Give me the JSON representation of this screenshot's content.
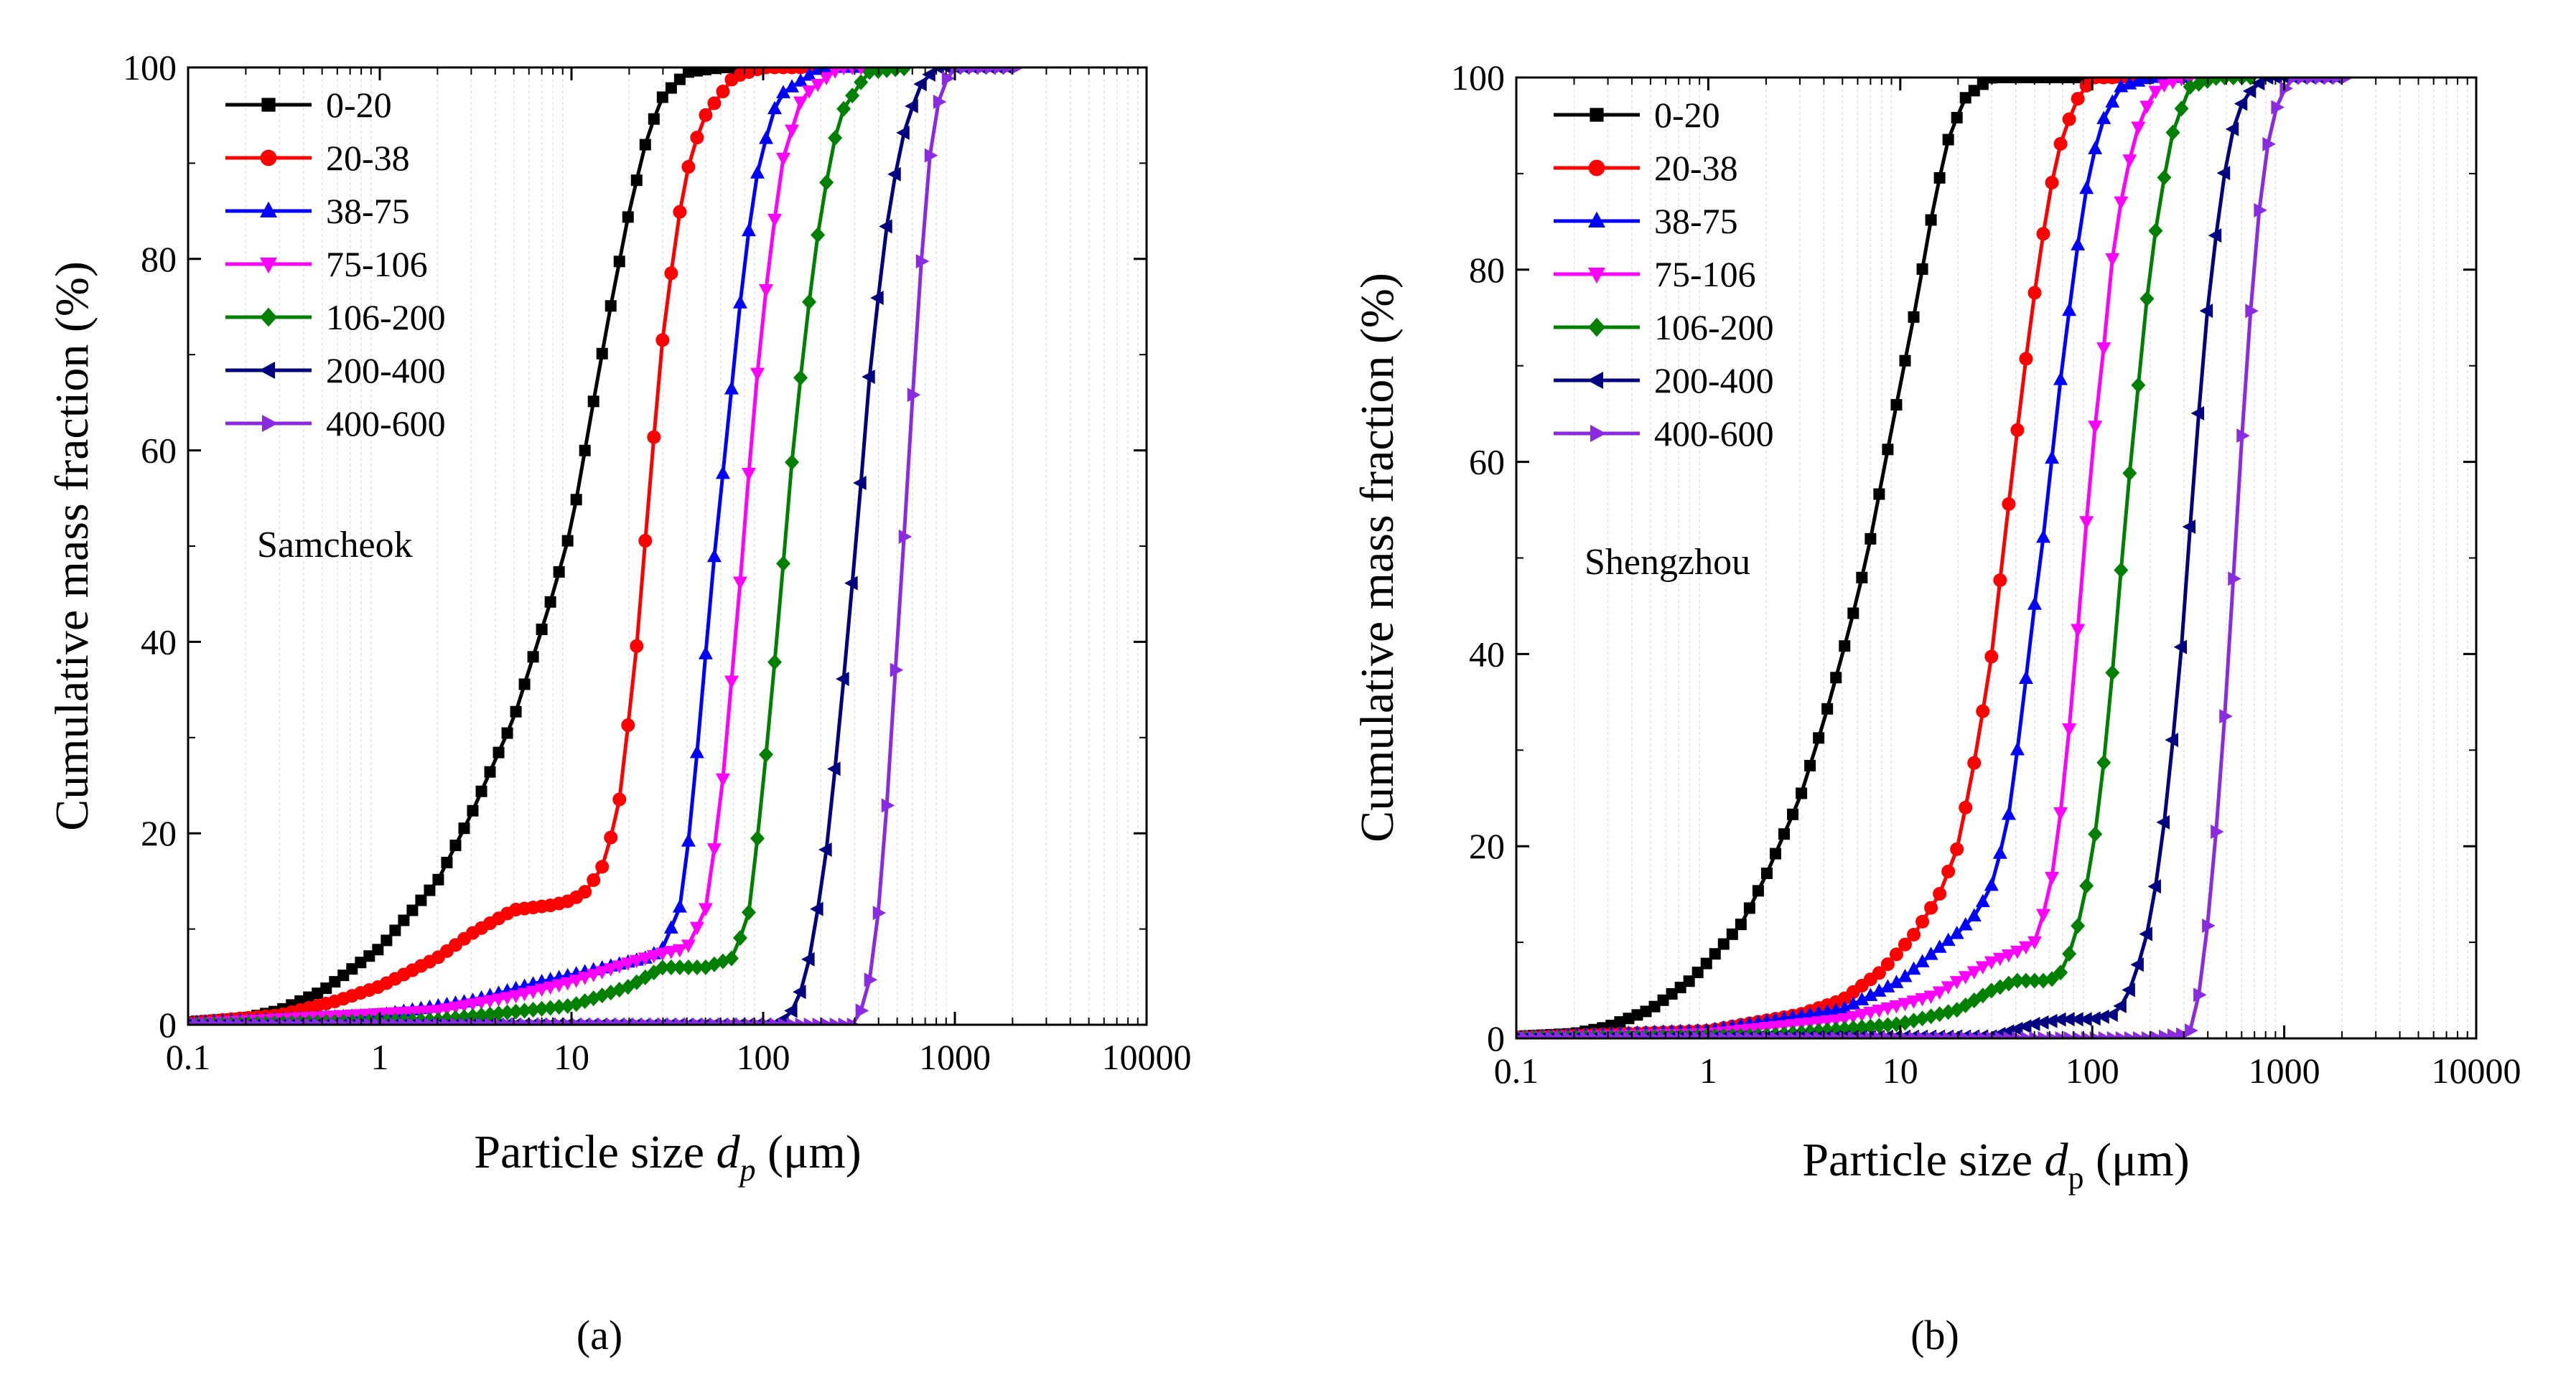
{
  "figure": {
    "panel_labels": [
      "(a)",
      "(b)"
    ]
  },
  "series_styles": [
    {
      "name": "0-20",
      "color": "#000000",
      "marker": "square"
    },
    {
      "name": "20-38",
      "color": "#ff0000",
      "marker": "circle"
    },
    {
      "name": "38-75",
      "color": "#0000ff",
      "marker": "triangle-up"
    },
    {
      "name": "75-106",
      "color": "#ff00ff",
      "marker": "triangle-down"
    },
    {
      "name": "106-200",
      "color": "#008000",
      "marker": "diamond"
    },
    {
      "name": "200-400",
      "color": "#000080",
      "marker": "triangle-left"
    },
    {
      "name": "400-600",
      "color": "#8a2be2",
      "marker": "triangle-right"
    }
  ],
  "chart_data": [
    {
      "type": "line",
      "panel": "(a)",
      "annotation": "Samcheok",
      "xscale": "log",
      "xlim": [
        0.1,
        10000
      ],
      "ylim": [
        0,
        100
      ],
      "xticks": [
        "0.1",
        "1",
        "10",
        "100",
        "1000",
        "10000"
      ],
      "yticks": [
        "0",
        "20",
        "40",
        "60",
        "80",
        "100"
      ],
      "xlabel_main": "Particle size ",
      "xlabel_var": "d",
      "xlabel_sub": "p",
      "xlabel_unit": " (μm)",
      "ylabel": "Cumulative mass fraction (%)",
      "legend_position": "top-left",
      "series": [
        {
          "name": "0-20",
          "points": [
            [
              0.1,
              0.3
            ],
            [
              0.2,
              0.7
            ],
            [
              0.3,
              1.5
            ],
            [
              0.5,
              3.5
            ],
            [
              1,
              8
            ],
            [
              2,
              15
            ],
            [
              3,
              22
            ],
            [
              5,
              32
            ],
            [
              8,
              45
            ],
            [
              10,
              52
            ],
            [
              13,
              65
            ],
            [
              16,
              75
            ],
            [
              20,
              85
            ],
            [
              25,
              93
            ],
            [
              30,
              97
            ],
            [
              40,
              99.5
            ],
            [
              60,
              100
            ],
            [
              100,
              100
            ]
          ]
        },
        {
          "name": "20-38",
          "points": [
            [
              0.1,
              0.2
            ],
            [
              0.3,
              1
            ],
            [
              0.6,
              2.5
            ],
            [
              1,
              4
            ],
            [
              2,
              7
            ],
            [
              3,
              9.5
            ],
            [
              5,
              12
            ],
            [
              8,
              12.5
            ],
            [
              10,
              13
            ],
            [
              12,
              14
            ],
            [
              15,
              17
            ],
            [
              18,
              24
            ],
            [
              22,
              40
            ],
            [
              26,
              58
            ],
            [
              30,
              72
            ],
            [
              36,
              84
            ],
            [
              42,
              91
            ],
            [
              50,
              95
            ],
            [
              70,
              99
            ],
            [
              100,
              100
            ],
            [
              200,
              100
            ]
          ]
        },
        {
          "name": "38-75",
          "points": [
            [
              0.1,
              0.2
            ],
            [
              1,
              1
            ],
            [
              3,
              2.5
            ],
            [
              7,
              4.5
            ],
            [
              15,
              6
            ],
            [
              25,
              7
            ],
            [
              30,
              8
            ],
            [
              38,
              13
            ],
            [
              45,
              28
            ],
            [
              55,
              48
            ],
            [
              65,
              62
            ],
            [
              80,
              80
            ],
            [
              95,
              90
            ],
            [
              120,
              97
            ],
            [
              200,
              100
            ],
            [
              400,
              100
            ]
          ]
        },
        {
          "name": "75-106",
          "points": [
            [
              0.1,
              0.1
            ],
            [
              2,
              1.5
            ],
            [
              5,
              3
            ],
            [
              10,
              4.5
            ],
            [
              20,
              6.5
            ],
            [
              30,
              7.5
            ],
            [
              40,
              8
            ],
            [
              50,
              12
            ],
            [
              60,
              23
            ],
            [
              75,
              45
            ],
            [
              90,
              65
            ],
            [
              105,
              78
            ],
            [
              125,
              90
            ],
            [
              160,
              97
            ],
            [
              250,
              100
            ],
            [
              500,
              100
            ]
          ]
        },
        {
          "name": "106-200",
          "points": [
            [
              0.1,
              0
            ],
            [
              2,
              0.5
            ],
            [
              10,
              2
            ],
            [
              20,
              4
            ],
            [
              30,
              6
            ],
            [
              50,
              6
            ],
            [
              70,
              7
            ],
            [
              85,
              12
            ],
            [
              100,
              25
            ],
            [
              120,
              42
            ],
            [
              140,
              58
            ],
            [
              165,
              72
            ],
            [
              200,
              85
            ],
            [
              250,
              95
            ],
            [
              350,
              99.5
            ],
            [
              600,
              100
            ]
          ]
        },
        {
          "name": "200-400",
          "points": [
            [
              0.1,
              0
            ],
            [
              50,
              0
            ],
            [
              120,
              0
            ],
            [
              150,
              2
            ],
            [
              180,
              8
            ],
            [
              220,
              20
            ],
            [
              260,
              35
            ],
            [
              310,
              52
            ],
            [
              360,
              68
            ],
            [
              430,
              82
            ],
            [
              520,
              92
            ],
            [
              650,
              98
            ],
            [
              800,
              100
            ],
            [
              1000,
              100
            ],
            [
              2000,
              100
            ]
          ]
        },
        {
          "name": "400-600",
          "points": [
            [
              0.1,
              0
            ],
            [
              200,
              0
            ],
            [
              300,
              0
            ],
            [
              350,
              3
            ],
            [
              400,
              12
            ],
            [
              450,
              25
            ],
            [
              500,
              40
            ],
            [
              560,
              55
            ],
            [
              620,
              70
            ],
            [
              680,
              82
            ],
            [
              750,
              92
            ],
            [
              850,
              98
            ],
            [
              1000,
              100
            ],
            [
              2200,
              100
            ]
          ]
        }
      ]
    },
    {
      "type": "line",
      "panel": "(b)",
      "annotation": "Shengzhou",
      "xscale": "log",
      "xlim": [
        0.1,
        10000
      ],
      "ylim": [
        0,
        100
      ],
      "xticks": [
        "0.1",
        "1",
        "10",
        "100",
        "1000",
        "10000"
      ],
      "yticks": [
        "0",
        "20",
        "40",
        "60",
        "80",
        "100"
      ],
      "xlabel_main": "Particle size ",
      "xlabel_var": "d",
      "xlabel_sub": "p",
      "xlabel_unit": " (μm)",
      "ylabel": "Cumulative mass fraction (%)",
      "legend_position": "top-left",
      "series": [
        {
          "name": "0-20",
          "points": [
            [
              0.1,
              0.2
            ],
            [
              0.2,
              0.5
            ],
            [
              0.3,
              1.2
            ],
            [
              0.5,
              3
            ],
            [
              0.8,
              6
            ],
            [
              1,
              8
            ],
            [
              1.5,
              12
            ],
            [
              2,
              17
            ],
            [
              3,
              25
            ],
            [
              4,
              33
            ],
            [
              5,
              40
            ],
            [
              6,
              46
            ],
            [
              7,
              52
            ],
            [
              8,
              58
            ],
            [
              10,
              68
            ],
            [
              12,
              76
            ],
            [
              15,
              87
            ],
            [
              18,
              94
            ],
            [
              22,
              98
            ],
            [
              30,
              100
            ],
            [
              100,
              100
            ],
            [
              200,
              100
            ]
          ]
        },
        {
          "name": "20-38",
          "points": [
            [
              0.1,
              0.1
            ],
            [
              1,
              0.8
            ],
            [
              3,
              2.5
            ],
            [
              5,
              4
            ],
            [
              8,
              7
            ],
            [
              12,
              11
            ],
            [
              16,
              15
            ],
            [
              20,
              20
            ],
            [
              25,
              30
            ],
            [
              30,
              40
            ],
            [
              35,
              52
            ],
            [
              40,
              62
            ],
            [
              46,
              72
            ],
            [
              52,
              80
            ],
            [
              60,
              88
            ],
            [
              70,
              94
            ],
            [
              85,
              98
            ],
            [
              100,
              100
            ],
            [
              200,
              100
            ]
          ]
        },
        {
          "name": "38-75",
          "points": [
            [
              0.1,
              0.1
            ],
            [
              1,
              0.8
            ],
            [
              5,
              3
            ],
            [
              10,
              6
            ],
            [
              15,
              9
            ],
            [
              20,
              11
            ],
            [
              25,
              13
            ],
            [
              30,
              16
            ],
            [
              36,
              22
            ],
            [
              42,
              32
            ],
            [
              50,
              45
            ],
            [
              58,
              55
            ],
            [
              65,
              65
            ],
            [
              75,
              75
            ],
            [
              90,
              87
            ],
            [
              110,
              95
            ],
            [
              140,
              99
            ],
            [
              200,
              100
            ],
            [
              300,
              100
            ]
          ]
        },
        {
          "name": "75-106",
          "points": [
            [
              0.1,
              0.1
            ],
            [
              1,
              0.5
            ],
            [
              5,
              2
            ],
            [
              10,
              3.5
            ],
            [
              15,
              4.5
            ],
            [
              20,
              6
            ],
            [
              30,
              8
            ],
            [
              40,
              9
            ],
            [
              50,
              10
            ],
            [
              60,
              15
            ],
            [
              70,
              25
            ],
            [
              80,
              37
            ],
            [
              90,
              50
            ],
            [
              100,
              61
            ],
            [
              115,
              72
            ],
            [
              130,
              83
            ],
            [
              150,
              90
            ],
            [
              180,
              96
            ],
            [
              220,
              99
            ],
            [
              300,
              100
            ],
            [
              500,
              100
            ]
          ]
        },
        {
          "name": "106-200",
          "points": [
            [
              0.1,
              0
            ],
            [
              2,
              0.3
            ],
            [
              10,
              1.5
            ],
            [
              20,
              3
            ],
            [
              30,
              5
            ],
            [
              40,
              6
            ],
            [
              50,
              6
            ],
            [
              60,
              6
            ],
            [
              70,
              7
            ],
            [
              80,
              10
            ],
            [
              90,
              14
            ],
            [
              105,
              22
            ],
            [
              120,
              32
            ],
            [
              135,
              44
            ],
            [
              150,
              55
            ],
            [
              170,
              66
            ],
            [
              190,
              76
            ],
            [
              220,
              86
            ],
            [
              260,
              94
            ],
            [
              320,
              99
            ],
            [
              450,
              100
            ],
            [
              700,
              100
            ]
          ]
        },
        {
          "name": "200-400",
          "points": [
            [
              0.1,
              0
            ],
            [
              30,
              0.2
            ],
            [
              50,
              1.5
            ],
            [
              70,
              2
            ],
            [
              100,
              2
            ],
            [
              130,
              2.5
            ],
            [
              150,
              4
            ],
            [
              170,
              7
            ],
            [
              200,
              12
            ],
            [
              230,
              20
            ],
            [
              260,
              30
            ],
            [
              290,
              40
            ],
            [
              320,
              52
            ],
            [
              350,
              62
            ],
            [
              380,
              72
            ],
            [
              420,
              80
            ],
            [
              470,
              88
            ],
            [
              530,
              94
            ],
            [
              620,
              98
            ],
            [
              800,
              100
            ],
            [
              2000,
              100
            ]
          ]
        },
        {
          "name": "400-600",
          "points": [
            [
              0.1,
              0
            ],
            [
              200,
              0
            ],
            [
              320,
              0.5
            ],
            [
              350,
              3
            ],
            [
              380,
              8
            ],
            [
              420,
              16
            ],
            [
              460,
              26
            ],
            [
              500,
              36
            ],
            [
              540,
              47
            ],
            [
              580,
              57
            ],
            [
              620,
              67
            ],
            [
              670,
              76
            ],
            [
              720,
              84
            ],
            [
              780,
              90
            ],
            [
              850,
              95
            ],
            [
              950,
              98
            ],
            [
              1100,
              100
            ],
            [
              2200,
              100
            ]
          ]
        }
      ]
    }
  ]
}
